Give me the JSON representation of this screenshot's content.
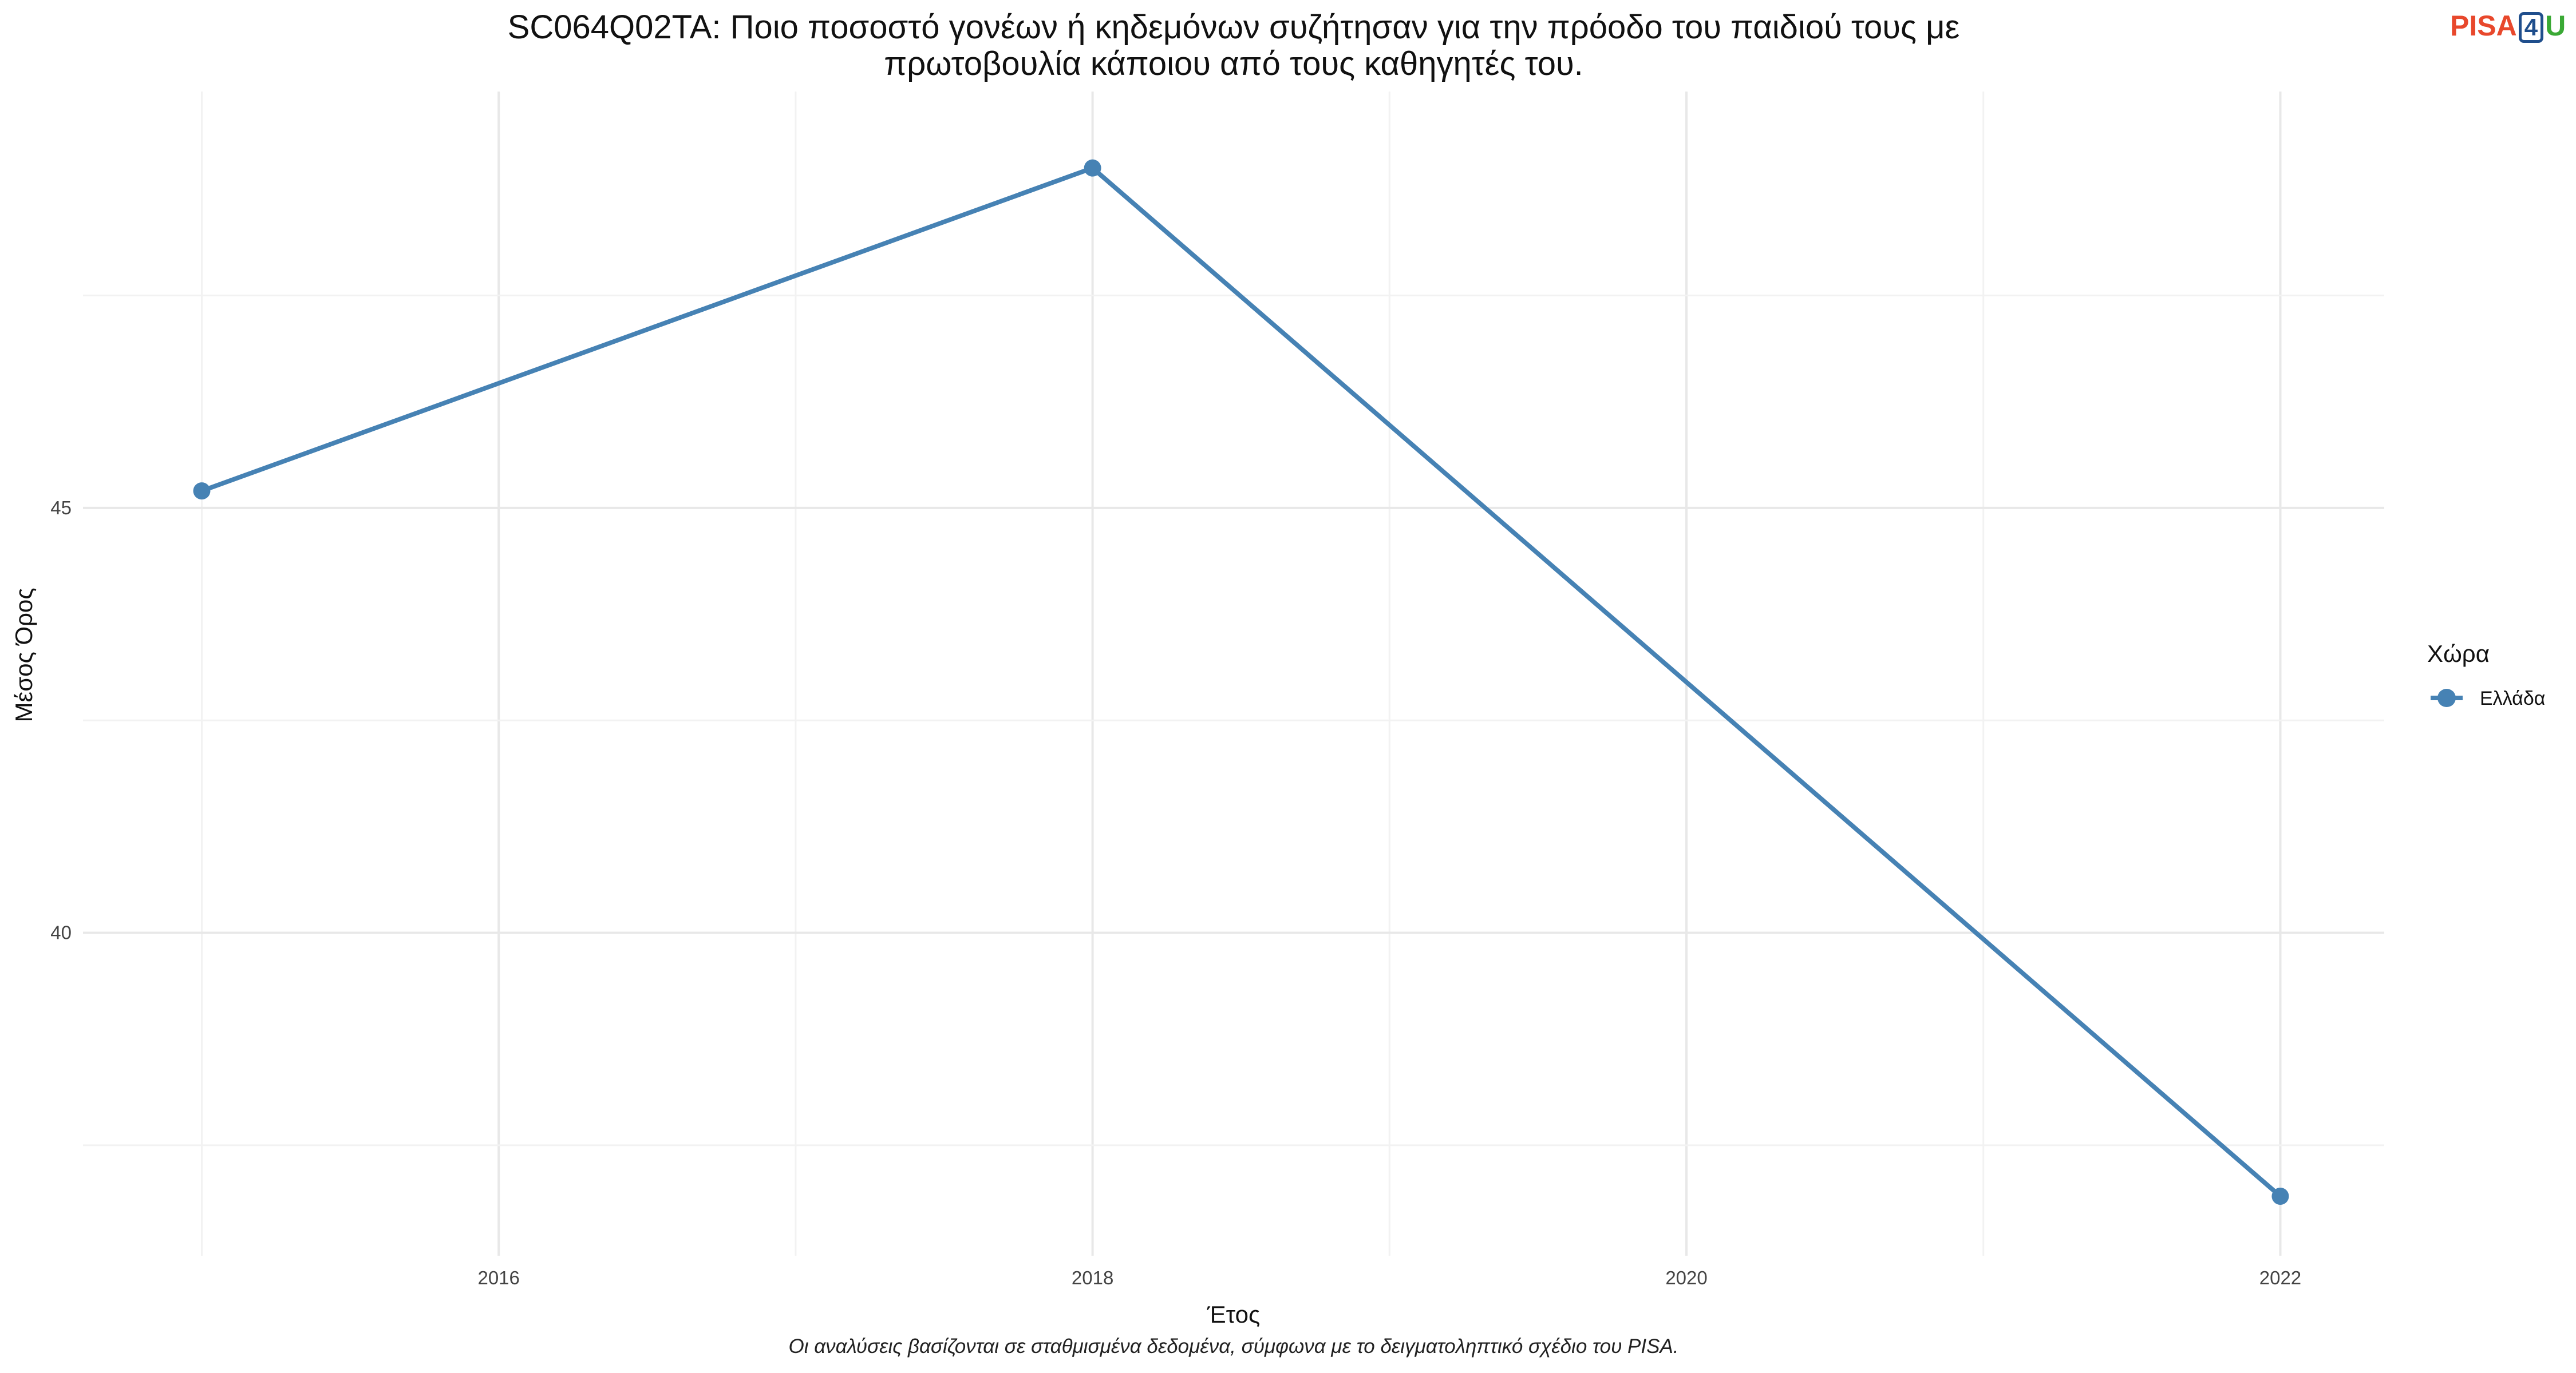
{
  "title": {
    "line1": "SC064Q02TA: Ποιο ποσοστό γονέων ή κηδεμόνων συζήτησαν για την πρόοδο του παιδιού τους με",
    "line2": "πρωτοβουλία κάποιου από τους καθηγητές του."
  },
  "caption": "Οι αναλύσεις βασίζονται σε σταθμισμένα δεδομένα, σύμφωνα με το δειγματοληπτικό σχέδιο του PISA.",
  "logo": {
    "part1": "PISA",
    "part2": "4",
    "part3": "U"
  },
  "chart_data": {
    "type": "line",
    "xlabel": "Έτος",
    "ylabel": "Μέσος Όρος",
    "x_ticks": [
      2016,
      2018,
      2020,
      2022
    ],
    "y_ticks": [
      40,
      45
    ],
    "xlim": [
      2014.6,
      2022.35
    ],
    "ylim": [
      36.2,
      49.9
    ],
    "grid": true,
    "legend": {
      "title": "Χώρα",
      "position": "right"
    },
    "series": [
      {
        "name": "Ελλάδα",
        "color": "#4682B4",
        "x": [
          2015,
          2018,
          2022
        ],
        "y": [
          45.2,
          49.0,
          36.9
        ]
      }
    ]
  }
}
